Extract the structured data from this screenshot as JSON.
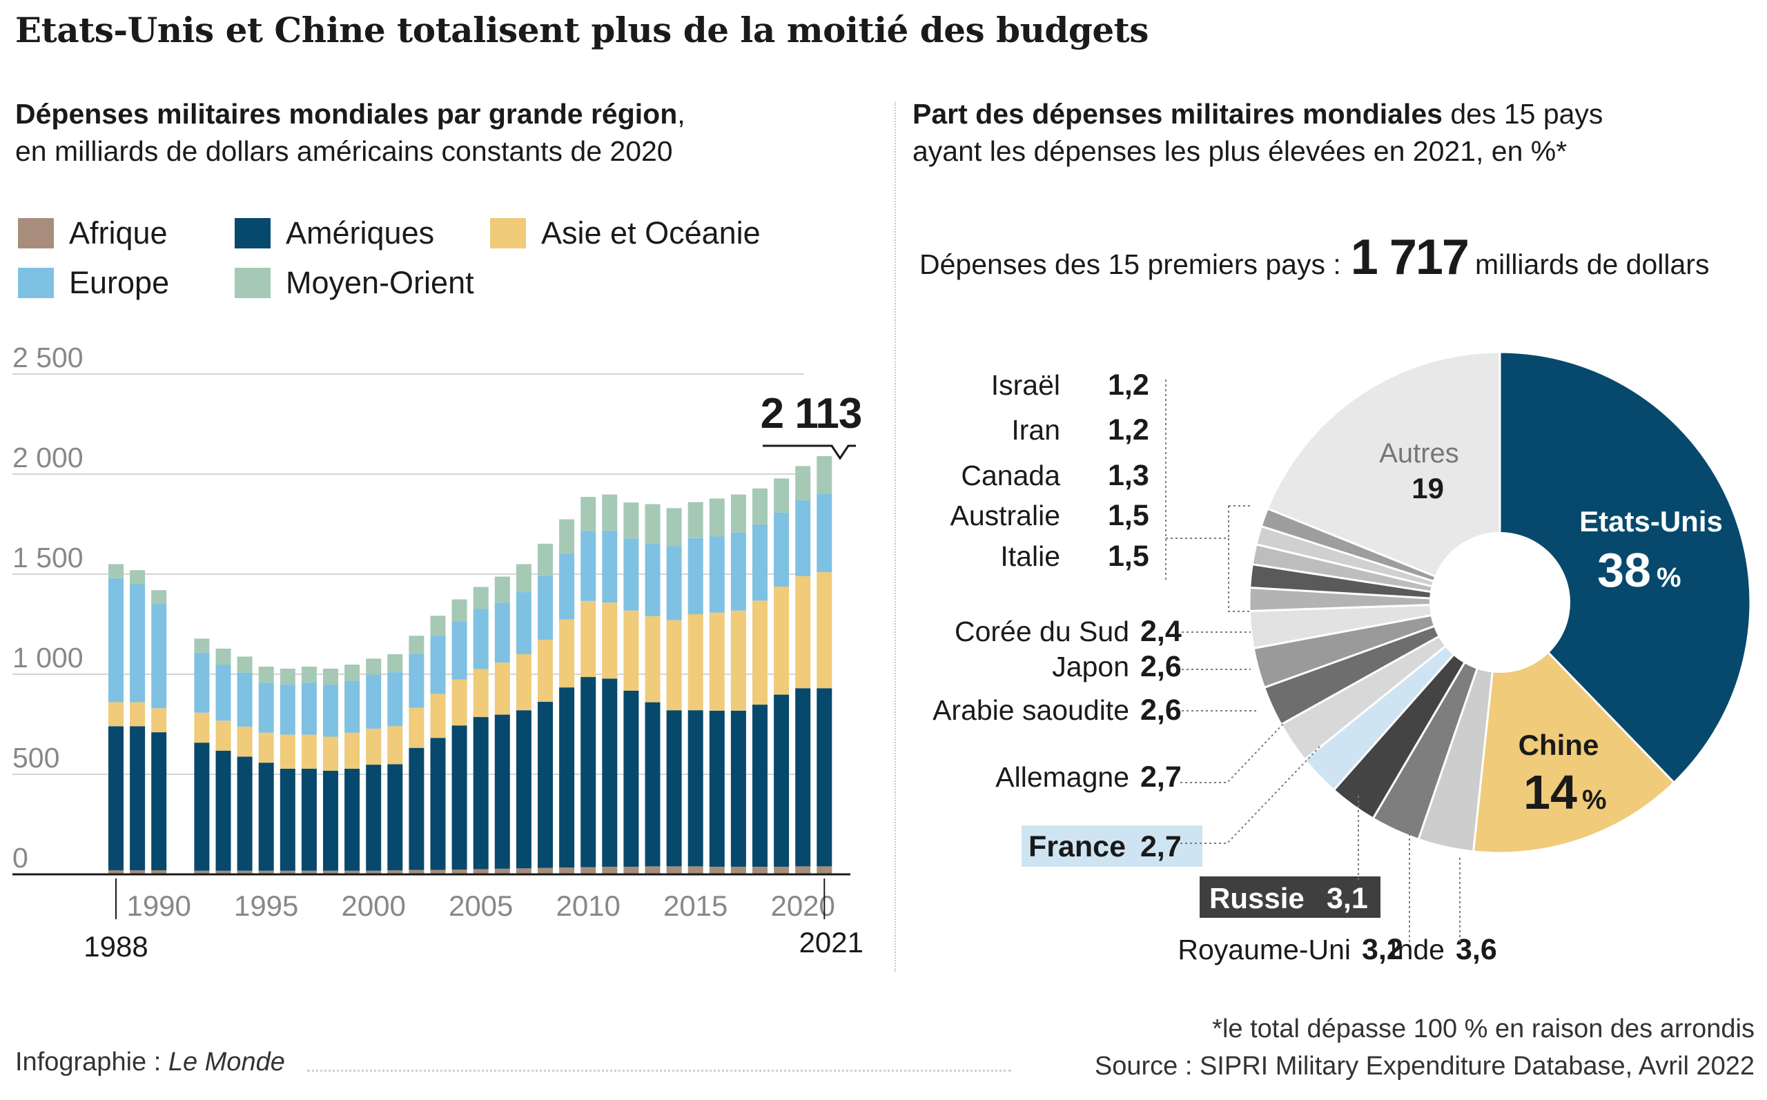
{
  "title": "Etats-Unis et Chine totalisent plus de la moitié des budgets",
  "left_subtitle_bold": "Dépenses militaires mondiales par grande région",
  "left_subtitle_rest": ",",
  "left_subtitle_line2": "en milliards de dollars américains constants de 2020",
  "right_subtitle_bold": "Part des dépenses militaires mondiales",
  "right_subtitle_rest": " des 15 pays",
  "right_subtitle_line2": "ayant les dépenses les plus élevées en 2021, en %*",
  "total_label": "Dépenses des 15 premiers pays  :",
  "total_value": "1 717",
  "total_unit": "milliards de dollars",
  "footer_left": "Infographie : ",
  "footer_left_italic": "Le Monde",
  "footnote": "*le total dépasse 100 % en raison des arrondis",
  "source": "Source : SIPRI Military Expenditure Database, Avril 2022",
  "colors": {
    "afrique": "#a88d7c",
    "ameriques": "#07496d",
    "asie": "#efcb7a",
    "europe": "#7ec1e2",
    "moyen_orient": "#a5c9b5"
  },
  "chart_data": [
    {
      "type": "bar",
      "stacked": true,
      "title": "Dépenses militaires mondiales par grande région",
      "ylabel": "en milliards de dollars américains constants de 2020",
      "ylim": [
        0,
        2500
      ],
      "yticks": [
        0,
        500,
        1000,
        1500,
        2000,
        2500
      ],
      "ytick_labels": [
        "0",
        "500",
        "1 000",
        "1 500",
        "2 000",
        "2 500"
      ],
      "xtick_labels": [
        "1990",
        "1995",
        "2000",
        "2005",
        "2010",
        "2015",
        "2020"
      ],
      "first_year_label": "1988",
      "last_year_label": "2021",
      "annotation": "2 113",
      "legend": [
        "Afrique",
        "Amériques",
        "Asie et Océanie",
        "Europe",
        "Moyen-Orient"
      ],
      "categories": [
        1988,
        1989,
        1990,
        1991,
        1992,
        1993,
        1994,
        1995,
        1996,
        1997,
        1998,
        1999,
        2000,
        2001,
        2002,
        2003,
        2004,
        2005,
        2006,
        2007,
        2008,
        2009,
        2010,
        2011,
        2012,
        2013,
        2014,
        2015,
        2016,
        2017,
        2018,
        2019,
        2020,
        2021
      ],
      "series": [
        {
          "name": "Afrique",
          "values": [
            20,
            20,
            20,
            null,
            18,
            18,
            18,
            18,
            18,
            18,
            18,
            18,
            18,
            20,
            22,
            22,
            24,
            26,
            28,
            30,
            32,
            34,
            36,
            38,
            38,
            40,
            40,
            40,
            38,
            38,
            38,
            38,
            40,
            40
          ]
        },
        {
          "name": "Amériques",
          "values": [
            720,
            720,
            690,
            null,
            640,
            600,
            570,
            540,
            510,
            510,
            500,
            510,
            530,
            530,
            610,
            660,
            720,
            760,
            770,
            790,
            830,
            900,
            950,
            940,
            880,
            820,
            780,
            780,
            780,
            780,
            810,
            860,
            890,
            890
          ]
        },
        {
          "name": "Asie et Océanie",
          "values": [
            120,
            120,
            120,
            null,
            150,
            150,
            150,
            150,
            170,
            170,
            170,
            180,
            180,
            190,
            200,
            220,
            230,
            240,
            260,
            280,
            310,
            340,
            380,
            380,
            400,
            430,
            450,
            480,
            490,
            500,
            520,
            540,
            560,
            580
          ]
        },
        {
          "name": "Europe",
          "values": [
            620,
            590,
            520,
            null,
            300,
            280,
            270,
            250,
            250,
            260,
            260,
            260,
            270,
            270,
            270,
            290,
            290,
            300,
            300,
            310,
            320,
            330,
            350,
            360,
            360,
            360,
            370,
            380,
            380,
            390,
            380,
            370,
            380,
            390
          ]
        },
        {
          "name": "Moyen-Orient",
          "values": [
            70,
            70,
            70,
            null,
            70,
            80,
            80,
            80,
            80,
            80,
            80,
            80,
            80,
            90,
            90,
            100,
            110,
            110,
            130,
            140,
            160,
            170,
            170,
            180,
            180,
            200,
            190,
            180,
            190,
            190,
            180,
            170,
            170,
            190
          ]
        }
      ]
    },
    {
      "type": "pie",
      "title": "Part des dépenses militaires mondiales des 15 pays ayant les dépenses les plus élevées en 2021",
      "unit": "%",
      "slices": [
        {
          "label": "Etats-Unis",
          "display": "38",
          "value": 38,
          "color": "#07496d"
        },
        {
          "label": "Chine",
          "display": "14",
          "value": 14,
          "color": "#efcb7a"
        },
        {
          "label": "Inde",
          "display": "3,6",
          "value": 3.6,
          "color": "#cdcdcd"
        },
        {
          "label": "Royaume-Uni",
          "display": "3,2",
          "value": 3.2,
          "color": "#7e7e7e"
        },
        {
          "label": "Russie",
          "display": "3,1",
          "value": 3.1,
          "color": "#444444"
        },
        {
          "label": "France",
          "display": "2,7",
          "value": 2.7,
          "color": "#cfe4f2"
        },
        {
          "label": "Allemagne",
          "display": "2,7",
          "value": 2.7,
          "color": "#d8d8d8"
        },
        {
          "label": "Arabie saoudite",
          "display": "2,6",
          "value": 2.6,
          "color": "#6e6e6e"
        },
        {
          "label": "Japon",
          "display": "2,6",
          "value": 2.6,
          "color": "#9a9a9a"
        },
        {
          "label": "Corée du Sud",
          "display": "2,4",
          "value": 2.4,
          "color": "#e2e2e2"
        },
        {
          "label": "Italie",
          "display": "1,5",
          "value": 1.5,
          "color": "#b3b3b3"
        },
        {
          "label": "Australie",
          "display": "1,5",
          "value": 1.5,
          "color": "#5a5a5a"
        },
        {
          "label": "Canada",
          "display": "1,3",
          "value": 1.3,
          "color": "#bdbdbd"
        },
        {
          "label": "Iran",
          "display": "1,2",
          "value": 1.2,
          "color": "#d0d0d0"
        },
        {
          "label": "Israël",
          "display": "1,2",
          "value": 1.2,
          "color": "#9e9e9e"
        },
        {
          "label": "Autres",
          "display": "19",
          "value": 19,
          "color": "#e8e8e8"
        }
      ]
    }
  ]
}
